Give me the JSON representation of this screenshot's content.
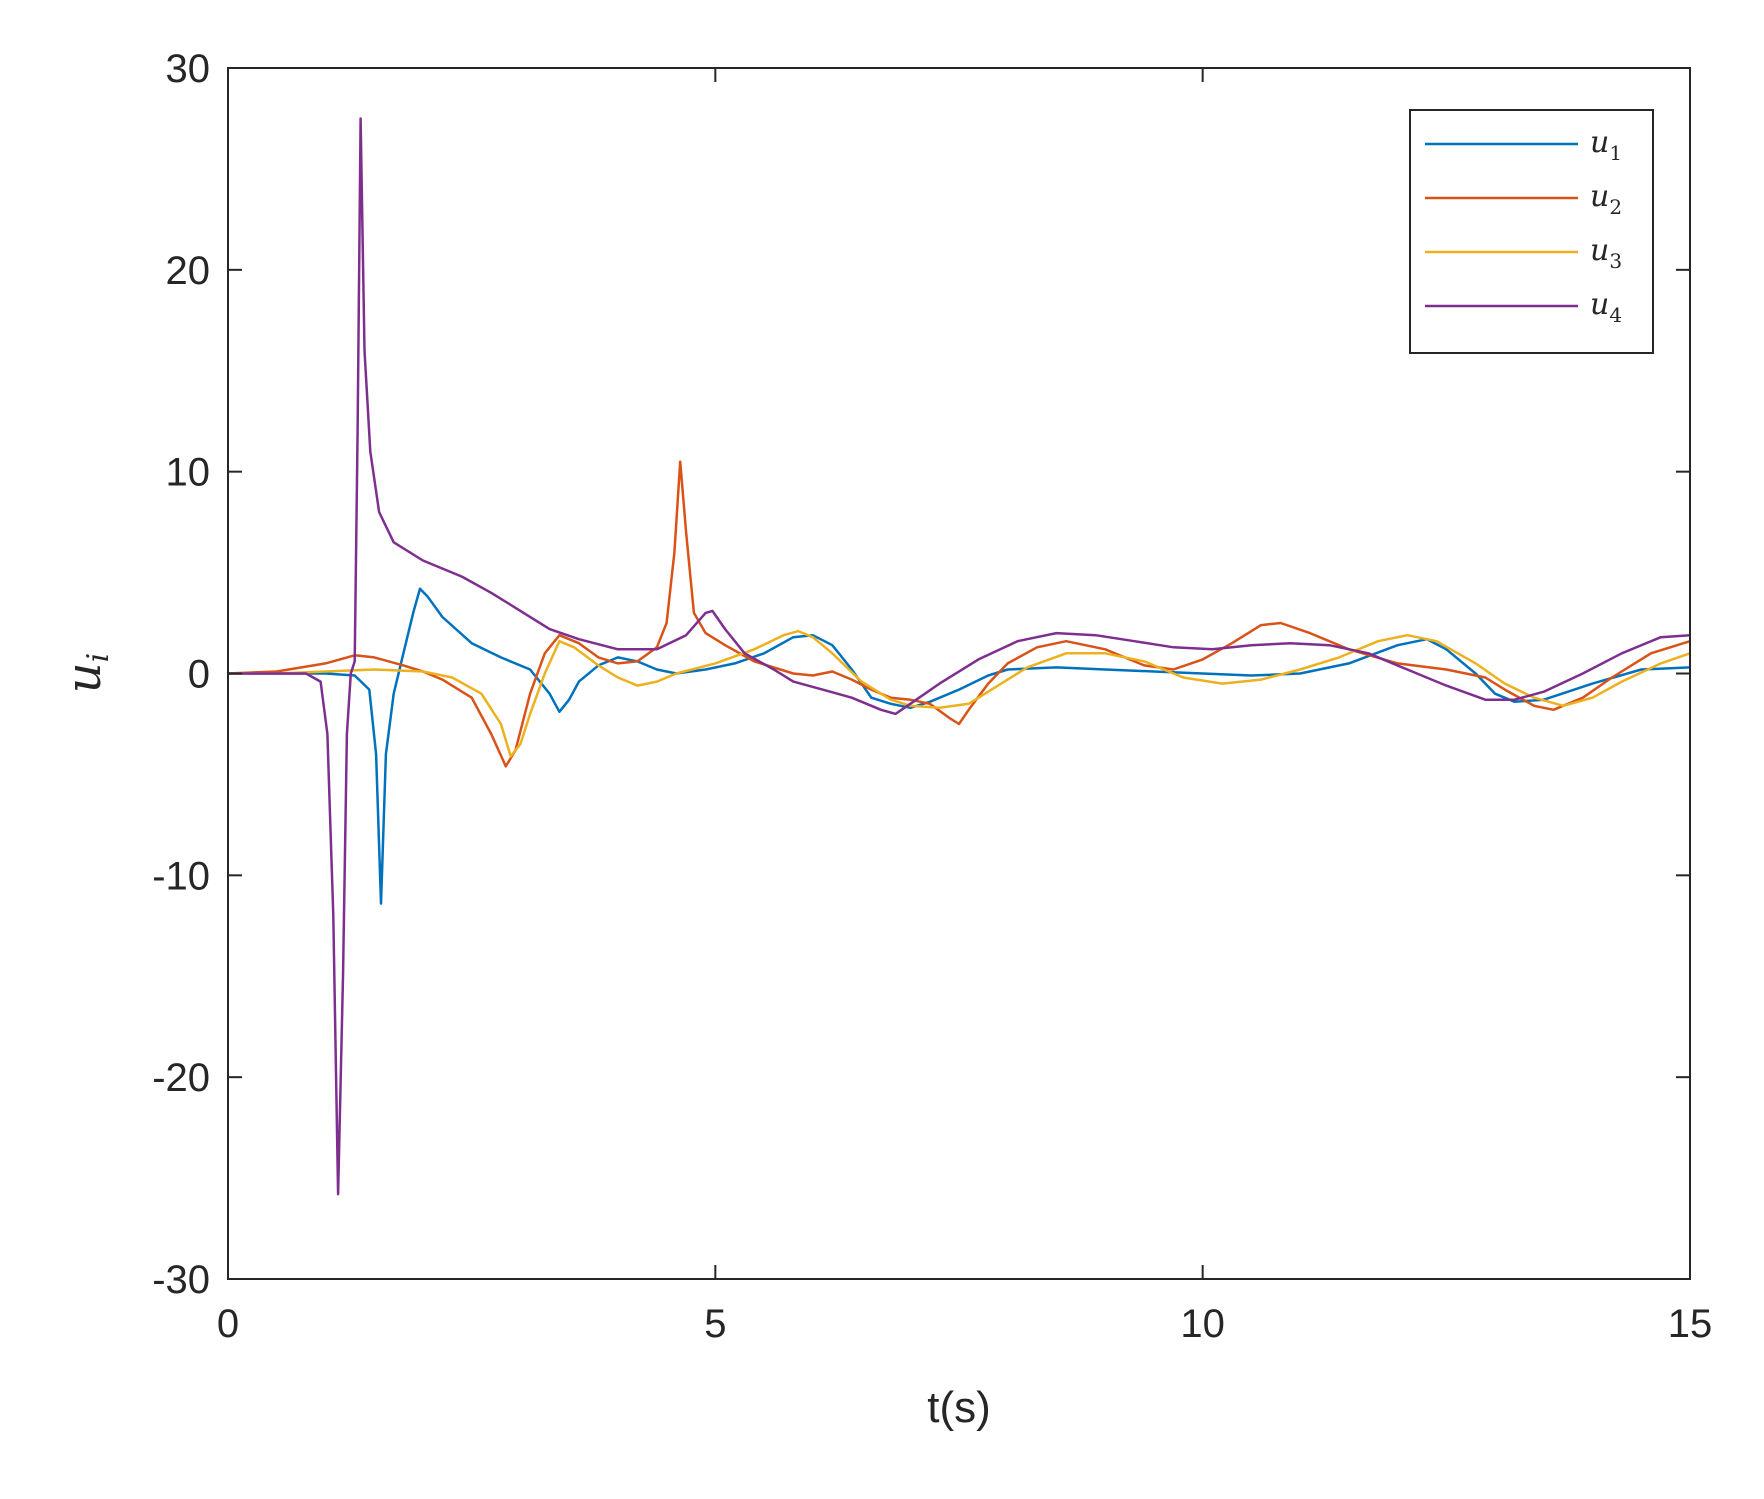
{
  "chart_data": {
    "type": "line",
    "title": "",
    "xlabel": "t(s)",
    "ylabel": "u",
    "ylabel_subscript": "i",
    "xlim": [
      0,
      15
    ],
    "ylim": [
      -30,
      30
    ],
    "xticks": [
      0,
      5,
      10,
      15
    ],
    "yticks": [
      -30,
      -20,
      -10,
      0,
      10,
      20,
      30
    ],
    "xtick_labels": [
      "0",
      "5",
      "10",
      "15"
    ],
    "ytick_labels": [
      "-30",
      "-20",
      "-10",
      "0",
      "10",
      "20",
      "30"
    ],
    "grid": false,
    "legend_position": "top-right",
    "series": [
      {
        "name": "u",
        "subscript": "1",
        "color": "#0072BD",
        "points": [
          [
            0,
            0
          ],
          [
            0.5,
            0
          ],
          [
            1.0,
            0
          ],
          [
            1.3,
            -0.1
          ],
          [
            1.45,
            -0.8
          ],
          [
            1.52,
            -4
          ],
          [
            1.57,
            -11.4
          ],
          [
            1.62,
            -4
          ],
          [
            1.7,
            -1
          ],
          [
            1.8,
            1
          ],
          [
            1.9,
            3
          ],
          [
            1.97,
            4.2
          ],
          [
            2.05,
            3.8
          ],
          [
            2.2,
            2.8
          ],
          [
            2.5,
            1.5
          ],
          [
            2.8,
            0.8
          ],
          [
            3.1,
            0.2
          ],
          [
            3.3,
            -1
          ],
          [
            3.4,
            -1.9
          ],
          [
            3.5,
            -1.3
          ],
          [
            3.6,
            -0.4
          ],
          [
            3.8,
            0.4
          ],
          [
            4.0,
            0.8
          ],
          [
            4.2,
            0.6
          ],
          [
            4.4,
            0.2
          ],
          [
            4.6,
            0
          ],
          [
            4.9,
            0.2
          ],
          [
            5.2,
            0.5
          ],
          [
            5.5,
            1
          ],
          [
            5.8,
            1.8
          ],
          [
            6.0,
            1.9
          ],
          [
            6.2,
            1.4
          ],
          [
            6.4,
            0.2
          ],
          [
            6.6,
            -1.2
          ],
          [
            6.8,
            -1.5
          ],
          [
            7.0,
            -1.7
          ],
          [
            7.2,
            -1.4
          ],
          [
            7.5,
            -0.8
          ],
          [
            7.8,
            -0.1
          ],
          [
            8.0,
            0.2
          ],
          [
            8.5,
            0.3
          ],
          [
            9.0,
            0.2
          ],
          [
            9.5,
            0.1
          ],
          [
            10.0,
            0
          ],
          [
            10.5,
            -0.1
          ],
          [
            11.0,
            0
          ],
          [
            11.5,
            0.5
          ],
          [
            12.0,
            1.4
          ],
          [
            12.3,
            1.7
          ],
          [
            12.5,
            1.2
          ],
          [
            12.8,
            0
          ],
          [
            13.0,
            -1
          ],
          [
            13.2,
            -1.4
          ],
          [
            13.5,
            -1.3
          ],
          [
            14.0,
            -0.5
          ],
          [
            14.5,
            0.2
          ],
          [
            15.0,
            0.3
          ]
        ]
      },
      {
        "name": "u",
        "subscript": "2",
        "color": "#D95319",
        "points": [
          [
            0,
            0
          ],
          [
            0.5,
            0.1
          ],
          [
            1.0,
            0.5
          ],
          [
            1.3,
            0.9
          ],
          [
            1.5,
            0.8
          ],
          [
            1.8,
            0.4
          ],
          [
            2.0,
            0.1
          ],
          [
            2.2,
            -0.3
          ],
          [
            2.5,
            -1.2
          ],
          [
            2.7,
            -3
          ],
          [
            2.85,
            -4.6
          ],
          [
            2.95,
            -3.8
          ],
          [
            3.1,
            -1
          ],
          [
            3.25,
            1
          ],
          [
            3.4,
            1.9
          ],
          [
            3.6,
            1.5
          ],
          [
            3.8,
            0.8
          ],
          [
            4.0,
            0.5
          ],
          [
            4.2,
            0.6
          ],
          [
            4.4,
            1.3
          ],
          [
            4.5,
            2.5
          ],
          [
            4.58,
            6
          ],
          [
            4.64,
            10.5
          ],
          [
            4.7,
            7
          ],
          [
            4.78,
            3
          ],
          [
            4.9,
            2
          ],
          [
            5.1,
            1.4
          ],
          [
            5.4,
            0.6
          ],
          [
            5.8,
            0
          ],
          [
            6.0,
            -0.1
          ],
          [
            6.2,
            0.1
          ],
          [
            6.4,
            -0.3
          ],
          [
            6.6,
            -0.8
          ],
          [
            6.8,
            -1.2
          ],
          [
            7.0,
            -1.3
          ],
          [
            7.2,
            -1.5
          ],
          [
            7.4,
            -2.2
          ],
          [
            7.5,
            -2.5
          ],
          [
            7.6,
            -1.8
          ],
          [
            7.8,
            -0.5
          ],
          [
            8.0,
            0.5
          ],
          [
            8.3,
            1.3
          ],
          [
            8.6,
            1.6
          ],
          [
            9.0,
            1.2
          ],
          [
            9.4,
            0.4
          ],
          [
            9.7,
            0.2
          ],
          [
            10.0,
            0.7
          ],
          [
            10.3,
            1.5
          ],
          [
            10.6,
            2.4
          ],
          [
            10.8,
            2.5
          ],
          [
            11.1,
            2
          ],
          [
            11.5,
            1.2
          ],
          [
            12.0,
            0.5
          ],
          [
            12.5,
            0.2
          ],
          [
            12.9,
            -0.2
          ],
          [
            13.1,
            -0.8
          ],
          [
            13.4,
            -1.6
          ],
          [
            13.6,
            -1.8
          ],
          [
            13.9,
            -1.2
          ],
          [
            14.2,
            -0.2
          ],
          [
            14.6,
            1
          ],
          [
            15.0,
            1.6
          ]
        ]
      },
      {
        "name": "u",
        "subscript": "3",
        "color": "#EDB120",
        "points": [
          [
            0,
            0
          ],
          [
            0.5,
            0
          ],
          [
            1.0,
            0.1
          ],
          [
            1.5,
            0.2
          ],
          [
            2.0,
            0.1
          ],
          [
            2.3,
            -0.2
          ],
          [
            2.6,
            -1
          ],
          [
            2.8,
            -2.5
          ],
          [
            2.9,
            -4.1
          ],
          [
            3.0,
            -3.5
          ],
          [
            3.1,
            -2
          ],
          [
            3.25,
            0
          ],
          [
            3.4,
            1.6
          ],
          [
            3.55,
            1.3
          ],
          [
            3.8,
            0.4
          ],
          [
            4.0,
            -0.2
          ],
          [
            4.2,
            -0.6
          ],
          [
            4.4,
            -0.4
          ],
          [
            4.6,
            0
          ],
          [
            5.0,
            0.5
          ],
          [
            5.4,
            1.2
          ],
          [
            5.7,
            1.9
          ],
          [
            5.85,
            2.1
          ],
          [
            6.0,
            1.8
          ],
          [
            6.2,
            1.0
          ],
          [
            6.5,
            -0.4
          ],
          [
            6.8,
            -1.3
          ],
          [
            7.0,
            -1.6
          ],
          [
            7.3,
            -1.7
          ],
          [
            7.6,
            -1.5
          ],
          [
            7.9,
            -0.6
          ],
          [
            8.2,
            0.3
          ],
          [
            8.6,
            1.0
          ],
          [
            9.0,
            1.0
          ],
          [
            9.4,
            0.6
          ],
          [
            9.8,
            -0.2
          ],
          [
            10.2,
            -0.5
          ],
          [
            10.6,
            -0.3
          ],
          [
            11.0,
            0.2
          ],
          [
            11.4,
            0.8
          ],
          [
            11.8,
            1.6
          ],
          [
            12.1,
            1.9
          ],
          [
            12.4,
            1.6
          ],
          [
            12.8,
            0.5
          ],
          [
            13.1,
            -0.5
          ],
          [
            13.4,
            -1.2
          ],
          [
            13.7,
            -1.6
          ],
          [
            14.0,
            -1.2
          ],
          [
            14.3,
            -0.4
          ],
          [
            14.7,
            0.5
          ],
          [
            15.0,
            1.0
          ]
        ]
      },
      {
        "name": "u",
        "subscript": "4",
        "color": "#7E2F8E",
        "points": [
          [
            0,
            0
          ],
          [
            0.5,
            0
          ],
          [
            0.8,
            0
          ],
          [
            0.95,
            -0.4
          ],
          [
            1.02,
            -3
          ],
          [
            1.08,
            -12
          ],
          [
            1.13,
            -25.8
          ],
          [
            1.18,
            -15
          ],
          [
            1.22,
            -3
          ],
          [
            1.26,
            0
          ],
          [
            1.3,
            0.6
          ],
          [
            1.33,
            12
          ],
          [
            1.36,
            27.5
          ],
          [
            1.4,
            16
          ],
          [
            1.46,
            11
          ],
          [
            1.55,
            8
          ],
          [
            1.7,
            6.5
          ],
          [
            2.0,
            5.6
          ],
          [
            2.4,
            4.8
          ],
          [
            2.7,
            4
          ],
          [
            3.0,
            3.1
          ],
          [
            3.3,
            2.2
          ],
          [
            3.6,
            1.7
          ],
          [
            4.0,
            1.2
          ],
          [
            4.4,
            1.2
          ],
          [
            4.7,
            1.9
          ],
          [
            4.9,
            3
          ],
          [
            4.97,
            3.1
          ],
          [
            5.1,
            2.2
          ],
          [
            5.3,
            1
          ],
          [
            5.6,
            0.2
          ],
          [
            5.8,
            -0.4
          ],
          [
            6.1,
            -0.8
          ],
          [
            6.4,
            -1.2
          ],
          [
            6.7,
            -1.8
          ],
          [
            6.85,
            -2
          ],
          [
            7.0,
            -1.5
          ],
          [
            7.3,
            -0.5
          ],
          [
            7.7,
            0.7
          ],
          [
            8.1,
            1.6
          ],
          [
            8.5,
            2
          ],
          [
            8.9,
            1.9
          ],
          [
            9.3,
            1.6
          ],
          [
            9.7,
            1.3
          ],
          [
            10.1,
            1.2
          ],
          [
            10.5,
            1.4
          ],
          [
            10.9,
            1.5
          ],
          [
            11.3,
            1.4
          ],
          [
            11.7,
            1.0
          ],
          [
            12.1,
            0.2
          ],
          [
            12.5,
            -0.6
          ],
          [
            12.9,
            -1.3
          ],
          [
            13.2,
            -1.3
          ],
          [
            13.5,
            -0.9
          ],
          [
            13.9,
            0
          ],
          [
            14.3,
            1
          ],
          [
            14.7,
            1.8
          ],
          [
            15.0,
            1.9
          ]
        ]
      }
    ]
  }
}
